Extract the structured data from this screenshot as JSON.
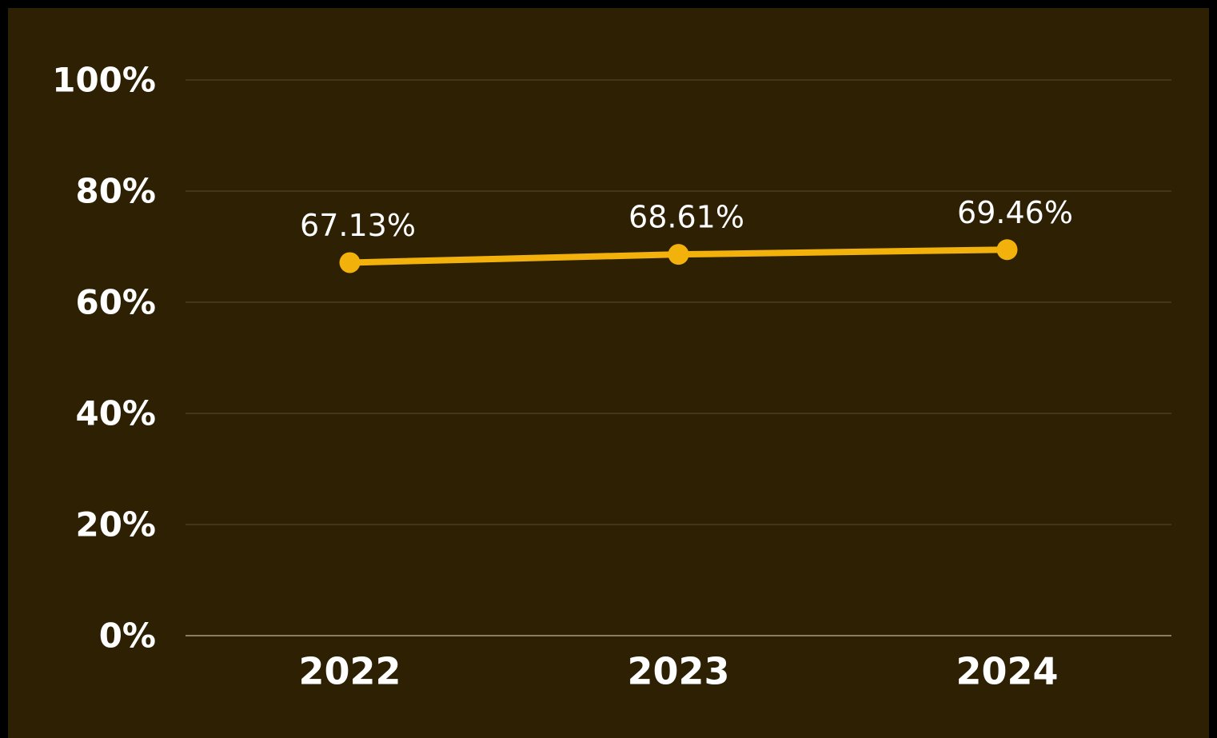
{
  "chart_data": {
    "type": "line",
    "categories": [
      "2022",
      "2023",
      "2024"
    ],
    "series": [
      {
        "color": "#f2b20b",
        "values": [
          67.13,
          68.61,
          69.46
        ],
        "value_labels": [
          "67.13%",
          "68.61%",
          "69.46%"
        ]
      }
    ],
    "ylim": [
      0,
      100
    ],
    "yticks": [
      {
        "value": 0,
        "label": "0%"
      },
      {
        "value": 20,
        "label": "20%"
      },
      {
        "value": 40,
        "label": "40%"
      },
      {
        "value": 60,
        "label": "60%"
      },
      {
        "value": 80,
        "label": "80%"
      },
      {
        "value": 100,
        "label": "100%"
      }
    ],
    "grid": true
  }
}
